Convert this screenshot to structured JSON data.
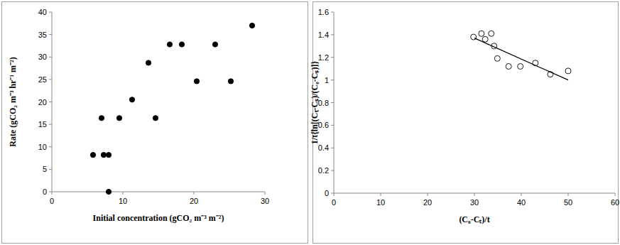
{
  "chart_data": [
    {
      "type": "scatter",
      "x_label": "Initial concentration (gCO₂ m⁻³ m⁻²)",
      "y_label": "Rate (gCO₂ m⁻³ hr⁻¹ m⁻²)",
      "xlim": [
        0,
        30
      ],
      "ylim": [
        0,
        40
      ],
      "xticks": [
        0,
        10,
        20,
        30
      ],
      "yticks": [
        0,
        5,
        10,
        15,
        20,
        25,
        30,
        35,
        40
      ],
      "grid": false,
      "series": [
        {
          "type": "scatter",
          "marker": "circle",
          "color": "#000000",
          "x": [
            5.8,
            7.0,
            7.3,
            8.0,
            8.0,
            9.5,
            11.3,
            13.6,
            14.6,
            16.6,
            18.3,
            20.4,
            23.0,
            25.2,
            28.2
          ],
          "values": [
            8.2,
            16.4,
            8.2,
            8.2,
            0,
            16.4,
            20.5,
            28.7,
            16.4,
            32.8,
            32.8,
            24.6,
            32.8,
            24.6,
            37.0
          ]
        }
      ]
    },
    {
      "type": "scatter",
      "x_label": "(C₀-Cₜ)/t",
      "y_label": "1/t{ln[(Cₜ-Cₛ)/(C₀-Cₛ)]}",
      "xlim": [
        0,
        60
      ],
      "ylim": [
        0,
        1.6
      ],
      "xticks": [
        0,
        10,
        20,
        30,
        40,
        50,
        60
      ],
      "yticks": [
        0,
        0.2,
        0.4,
        0.6,
        0.8,
        1,
        1.2,
        1.4,
        1.6
      ],
      "grid": false,
      "series": [
        {
          "type": "scatter",
          "marker": "open-circle",
          "color": "#000000",
          "x": [
            29.8,
            31.5,
            32.3,
            33.6,
            34.2,
            34.9,
            37.3,
            39.8,
            43.0,
            46.2,
            50.0
          ],
          "values": [
            1.38,
            1.41,
            1.36,
            1.41,
            1.3,
            1.19,
            1.12,
            1.12,
            1.15,
            1.05,
            1.08
          ]
        },
        {
          "type": "line",
          "line_style": "solid",
          "color": "#000000",
          "x": [
            30,
            50
          ],
          "values": [
            1.37,
            1.0
          ]
        }
      ]
    }
  ]
}
